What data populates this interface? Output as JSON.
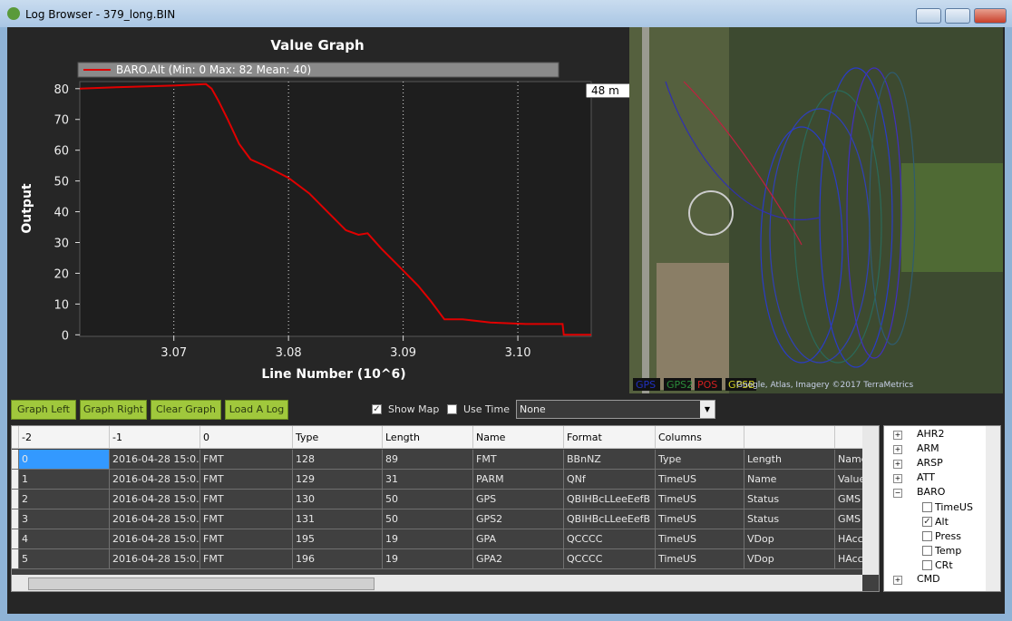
{
  "window": {
    "title": "Log Browser - 379_long.BIN"
  },
  "chart_data": {
    "type": "line",
    "title": "Value Graph",
    "x_label": "Line Number (10^6)",
    "y_label": "Output",
    "x": [
      3.0618,
      3.0653,
      3.07,
      3.0728,
      3.0733,
      3.0739,
      3.0747,
      3.0757,
      3.0767,
      3.0779,
      3.08,
      3.0818,
      3.0834,
      3.085,
      3.0861,
      3.0869,
      3.0881,
      3.0897,
      3.0913,
      3.0924,
      3.0936,
      3.0952,
      3.0976,
      3.1007,
      3.1039,
      3.104,
      3.1064
    ],
    "series": [
      {
        "name": "BARO.Alt (Min: 0 Max: 82 Mean: 40)",
        "color": "#e00000",
        "values": [
          80,
          80.5,
          81,
          81.5,
          80,
          76,
          70,
          62,
          57,
          55,
          51,
          46,
          40,
          34,
          32.5,
          33,
          28,
          22,
          16,
          11,
          5,
          5,
          4,
          3.5,
          3.5,
          0,
          0
        ]
      }
    ],
    "xlim": [
      3.0618,
      3.1064
    ],
    "xticks": [
      3.07,
      3.08,
      3.09,
      3.1
    ],
    "xtick_labels": [
      "3.07",
      "3.08",
      "3.09",
      "3.10"
    ],
    "ylim": [
      -0.5,
      82.3
    ],
    "yticks": [
      0,
      10,
      20,
      30,
      40,
      50,
      60,
      70,
      80
    ],
    "grid": "x",
    "cursor_label": "48 m"
  },
  "map": {
    "legend": [
      "GPS",
      "GPS2",
      "POS",
      "GPSB"
    ],
    "attribution": "Google, Atlas, Imagery ©2017 TerraMetrics"
  },
  "toolbar": {
    "buttons": [
      "Graph Left",
      "Graph Right",
      "Clear Graph",
      "Load A Log"
    ],
    "show_map": "Show Map",
    "use_time": "Use Time",
    "dropdown": "None"
  },
  "table": {
    "headers": [
      "-2",
      "-1",
      "0",
      "Type",
      "Length",
      "Name",
      "Format",
      "Columns"
    ],
    "rows": [
      [
        "0",
        "2016-04-28 15:0...",
        "FMT",
        "128",
        "89",
        "FMT",
        "BBnNZ",
        "Type",
        "Length",
        "Name"
      ],
      [
        "1",
        "2016-04-28 15:0...",
        "FMT",
        "129",
        "31",
        "PARM",
        "QNf",
        "TimeUS",
        "Name",
        "Value"
      ],
      [
        "2",
        "2016-04-28 15:0...",
        "FMT",
        "130",
        "50",
        "GPS",
        "QBIHBcLLeeEefB",
        "TimeUS",
        "Status",
        "GMS"
      ],
      [
        "3",
        "2016-04-28 15:0...",
        "FMT",
        "131",
        "50",
        "GPS2",
        "QBIHBcLLeeEefB",
        "TimeUS",
        "Status",
        "GMS"
      ],
      [
        "4",
        "2016-04-28 15:0...",
        "FMT",
        "195",
        "19",
        "GPA",
        "QCCCC",
        "TimeUS",
        "VDop",
        "HAcc"
      ],
      [
        "5",
        "2016-04-28 15:0...",
        "FMT",
        "196",
        "19",
        "GPA2",
        "QCCCC",
        "TimeUS",
        "VDop",
        "HAcc"
      ]
    ]
  },
  "tree": {
    "nodes": [
      "AHR2",
      "ARM",
      "ARSP",
      "ATT",
      "BARO"
    ],
    "baro_children": [
      "TimeUS",
      "Alt",
      "Press",
      "Temp",
      "CRt"
    ],
    "after": [
      "CMD"
    ]
  }
}
